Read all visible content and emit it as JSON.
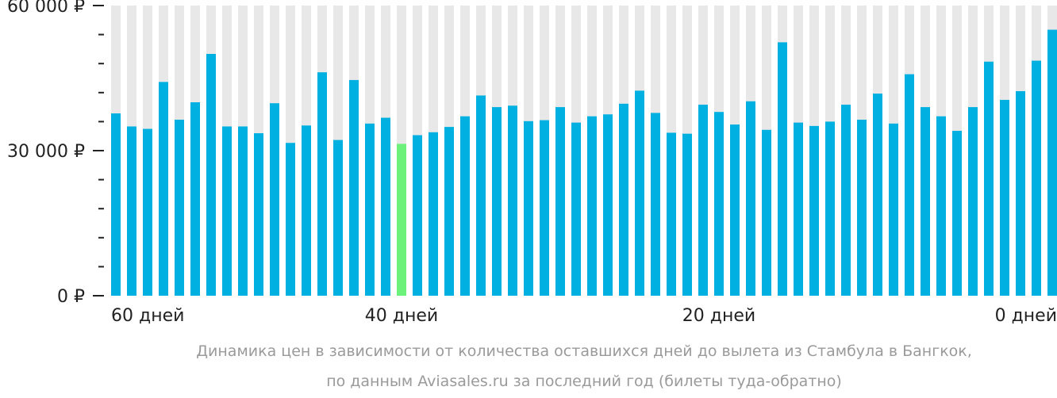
{
  "colors": {
    "bar": "#00b0e0",
    "highlight": "#6cf27a",
    "track": "#e8e8e8",
    "axis": "#222222",
    "caption": "#9a9a9a"
  },
  "chart_data": {
    "type": "bar",
    "highlight_index": 18,
    "ylim": [
      0,
      60000
    ],
    "yticks": [
      {
        "value": 60000,
        "label": "60 000 ₽"
      },
      {
        "value": 30000,
        "label": "30 000 ₽"
      },
      {
        "value": 0,
        "label": "0 ₽"
      }
    ],
    "minor_ticks": [
      6000,
      12000,
      18000,
      24000,
      36000,
      42000,
      48000,
      54000
    ],
    "xtick_labels": [
      {
        "index": 0,
        "label": "60 дней"
      },
      {
        "index": 18,
        "label": "40 дней"
      },
      {
        "index": 38,
        "label": "20 дней"
      },
      {
        "index": 59,
        "label": "0 дней"
      }
    ],
    "values": [
      37700,
      35000,
      34500,
      44200,
      36400,
      40000,
      50000,
      35000,
      35000,
      33600,
      39800,
      31600,
      35200,
      46200,
      32200,
      44600,
      35600,
      36800,
      31400,
      33200,
      33800,
      34900,
      37100,
      41400,
      39000,
      39300,
      36100,
      36300,
      39000,
      35800,
      37100,
      37500,
      39700,
      42400,
      37800,
      33700,
      33500,
      39500,
      38000,
      35400,
      40200,
      34300,
      52400,
      35800,
      35100,
      36000,
      39500,
      36400,
      41800,
      35600,
      45800,
      39000,
      37100,
      34100,
      39000,
      48400,
      40500,
      42300,
      48600,
      55000
    ],
    "caption": [
      "Динамика цен в зависимости от количества оставшихся дней до вылета из Стамбула в Бангкок,",
      "по данным Aviasales.ru за последний год (билеты туда-обратно)"
    ]
  }
}
